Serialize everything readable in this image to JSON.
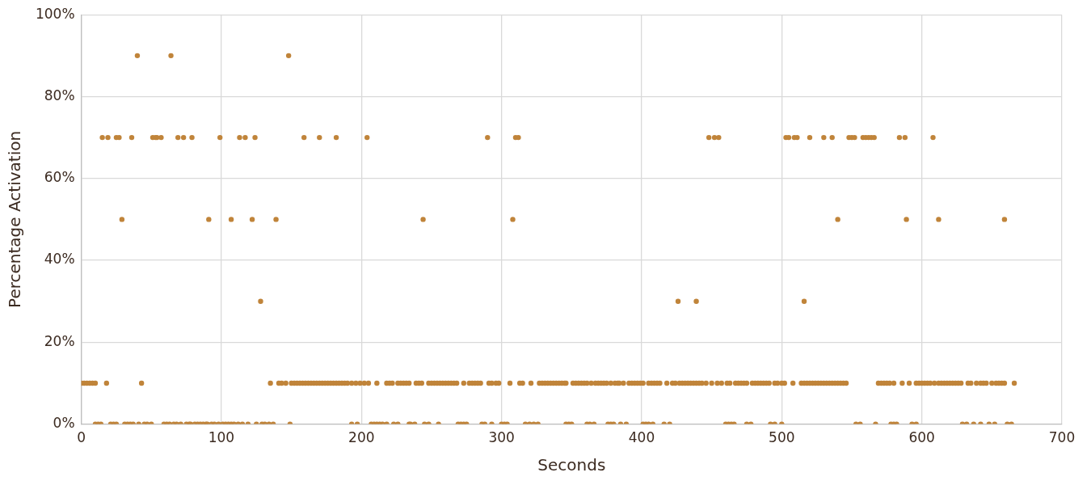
{
  "chart_data": {
    "type": "scatter",
    "xlabel": "Seconds",
    "ylabel": "Percentage Activation",
    "xlim": [
      0,
      700
    ],
    "ylim": [
      0,
      100
    ],
    "xticks": [
      0,
      100,
      200,
      300,
      400,
      500,
      600,
      700
    ],
    "yticks": [
      {
        "value": 0,
        "label": "0%"
      },
      {
        "value": 20,
        "label": "20%"
      },
      {
        "value": 40,
        "label": "40%"
      },
      {
        "value": 60,
        "label": "60%"
      },
      {
        "value": 80,
        "label": "80%"
      },
      {
        "value": 100,
        "label": "100%"
      }
    ],
    "grid": true,
    "marker": "circle",
    "series": [
      {
        "color": "#c0843a",
        "x": [
          40,
          64,
          148,
          15,
          19,
          25,
          27,
          36,
          51,
          53,
          54,
          57,
          69,
          73,
          79,
          99,
          113,
          117,
          124,
          159,
          170,
          182,
          204,
          290,
          310,
          312,
          448,
          452,
          455,
          503,
          505,
          509,
          511,
          520,
          530,
          536,
          548,
          550,
          552,
          558,
          560,
          562,
          564,
          566,
          584,
          588,
          608,
          29,
          91,
          107,
          122,
          139,
          244,
          308,
          540,
          589,
          612,
          659,
          128,
          426,
          439,
          516
        ],
        "values": [
          90,
          90,
          90,
          70,
          70,
          70,
          70,
          70,
          70,
          70,
          70,
          70,
          70,
          70,
          70,
          70,
          70,
          70,
          70,
          70,
          70,
          70,
          70,
          70,
          70,
          70,
          70,
          70,
          70,
          70,
          70,
          70,
          70,
          70,
          70,
          70,
          70,
          70,
          70,
          70,
          70,
          70,
          70,
          70,
          70,
          70,
          70,
          50,
          50,
          50,
          50,
          50,
          50,
          50,
          50,
          50,
          50,
          50,
          30,
          30,
          30,
          30
        ]
      },
      {
        "color": "#c0843a",
        "x": [
          0,
          2,
          4,
          6,
          8,
          10,
          18,
          43,
          135,
          141,
          143,
          146,
          150,
          152,
          154,
          156,
          158,
          160,
          162,
          164,
          166,
          168,
          170,
          172,
          174,
          176,
          178,
          180,
          182,
          184,
          186,
          188,
          190,
          193,
          196,
          199,
          202,
          205,
          211,
          218,
          220,
          222,
          226,
          228,
          230,
          232,
          234,
          239,
          241,
          243,
          248,
          250,
          252,
          254,
          256,
          258,
          260,
          262,
          264,
          266,
          268,
          273,
          277,
          279,
          281,
          283,
          285,
          291,
          293,
          296,
          298,
          306,
          313,
          315,
          321,
          327,
          329,
          331,
          333,
          335,
          337,
          339,
          341,
          343,
          345,
          346,
          351,
          353,
          355,
          357,
          359,
          361,
          364,
          367,
          369,
          371,
          373,
          375,
          378,
          381,
          383,
          384,
          387,
          391,
          393,
          395,
          397,
          399,
          401,
          405,
          407,
          409,
          411,
          413,
          418,
          422,
          424,
          427,
          429,
          431,
          433,
          435,
          437,
          439,
          441,
          443,
          446,
          450,
          454,
          457,
          461,
          463,
          467,
          469,
          471,
          473,
          475,
          479,
          481,
          483,
          485,
          487,
          489,
          491,
          495,
          497,
          500,
          502,
          508,
          514,
          516,
          518,
          520,
          522,
          524,
          526,
          528,
          530,
          532,
          534,
          536,
          538,
          540,
          542,
          544,
          546,
          569,
          571,
          573,
          575,
          577,
          580,
          586,
          591,
          596,
          598,
          600,
          602,
          604,
          606,
          609,
          612,
          614,
          616,
          618,
          620,
          622,
          624,
          626,
          628,
          633,
          635,
          639,
          642,
          644,
          646,
          650,
          653,
          655,
          657,
          659,
          666
        ],
        "values": [
          10,
          10,
          10,
          10,
          10,
          10,
          10,
          10,
          10,
          10,
          10,
          10,
          10,
          10,
          10,
          10,
          10,
          10,
          10,
          10,
          10,
          10,
          10,
          10,
          10,
          10,
          10,
          10,
          10,
          10,
          10,
          10,
          10,
          10,
          10,
          10,
          10,
          10,
          10,
          10,
          10,
          10,
          10,
          10,
          10,
          10,
          10,
          10,
          10,
          10,
          10,
          10,
          10,
          10,
          10,
          10,
          10,
          10,
          10,
          10,
          10,
          10,
          10,
          10,
          10,
          10,
          10,
          10,
          10,
          10,
          10,
          10,
          10,
          10,
          10,
          10,
          10,
          10,
          10,
          10,
          10,
          10,
          10,
          10,
          10,
          10,
          10,
          10,
          10,
          10,
          10,
          10,
          10,
          10,
          10,
          10,
          10,
          10,
          10,
          10,
          10,
          10,
          10,
          10,
          10,
          10,
          10,
          10,
          10,
          10,
          10,
          10,
          10,
          10,
          10,
          10,
          10,
          10,
          10,
          10,
          10,
          10,
          10,
          10,
          10,
          10,
          10,
          10,
          10,
          10,
          10,
          10,
          10,
          10,
          10,
          10,
          10,
          10,
          10,
          10,
          10,
          10,
          10,
          10,
          10,
          10,
          10,
          10,
          10,
          10,
          10,
          10,
          10,
          10,
          10,
          10,
          10,
          10,
          10,
          10,
          10,
          10,
          10,
          10,
          10,
          10,
          10,
          10,
          10,
          10,
          10,
          10,
          10,
          10,
          10,
          10,
          10,
          10,
          10,
          10,
          10,
          10,
          10,
          10,
          10,
          10,
          10,
          10,
          10,
          10,
          10,
          10,
          10,
          10,
          10,
          10,
          10,
          10,
          10,
          10,
          10,
          10
        ]
      },
      {
        "color": "#c0843a",
        "x": [
          10,
          12,
          14,
          21,
          23,
          25,
          31,
          33,
          35,
          37,
          41,
          45,
          47,
          50,
          59,
          61,
          63,
          66,
          68,
          71,
          75,
          77,
          78,
          81,
          83,
          85,
          87,
          89,
          90,
          93,
          95,
          98,
          101,
          103,
          105,
          107,
          109,
          112,
          115,
          119,
          125,
          129,
          131,
          134,
          137,
          149,
          193,
          197,
          207,
          209,
          211,
          213,
          215,
          218,
          223,
          226,
          234,
          235,
          238,
          245,
          248,
          255,
          269,
          271,
          273,
          275,
          286,
          288,
          293,
          300,
          302,
          304,
          317,
          320,
          323,
          326,
          346,
          348,
          350,
          361,
          363,
          366,
          376,
          378,
          380,
          385,
          389,
          401,
          403,
          405,
          408,
          416,
          420,
          460,
          462,
          464,
          466,
          475,
          478,
          492,
          495,
          500,
          553,
          556,
          567,
          578,
          580,
          582,
          593,
          596,
          629,
          632,
          637,
          642,
          648,
          652,
          661,
          664
        ],
        "values": [
          0,
          0,
          0,
          0,
          0,
          0,
          0,
          0,
          0,
          0,
          0,
          0,
          0,
          0,
          0,
          0,
          0,
          0,
          0,
          0,
          0,
          0,
          0,
          0,
          0,
          0,
          0,
          0,
          0,
          0,
          0,
          0,
          0,
          0,
          0,
          0,
          0,
          0,
          0,
          0,
          0,
          0,
          0,
          0,
          0,
          0,
          0,
          0,
          0,
          0,
          0,
          0,
          0,
          0,
          0,
          0,
          0,
          0,
          0,
          0,
          0,
          0,
          0,
          0,
          0,
          0,
          0,
          0,
          0,
          0,
          0,
          0,
          0,
          0,
          0,
          0,
          0,
          0,
          0,
          0,
          0,
          0,
          0,
          0,
          0,
          0,
          0,
          0,
          0,
          0,
          0,
          0,
          0,
          0,
          0,
          0,
          0,
          0,
          0,
          0,
          0,
          0,
          0,
          0,
          0,
          0,
          0,
          0,
          0,
          0,
          0,
          0,
          0,
          0,
          0,
          0,
          0,
          0
        ]
      }
    ]
  }
}
